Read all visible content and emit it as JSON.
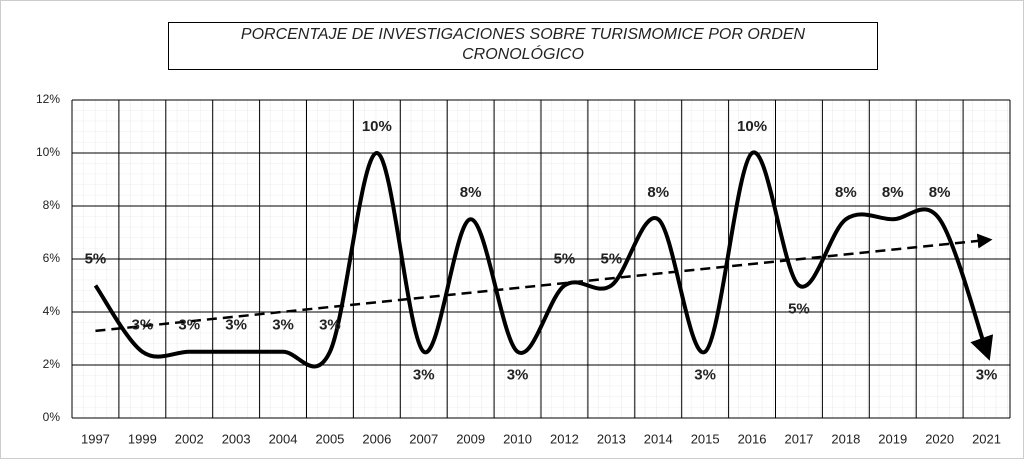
{
  "chart_data": {
    "type": "line",
    "title": "PORCENTAJE DE INVESTIGACIONES SOBRE TURISMOMICE POR ORDEN CRONOLÓGICO",
    "categories": [
      "1997",
      "1999",
      "2002",
      "2003",
      "2004",
      "2005",
      "2006",
      "2007",
      "2009",
      "2010",
      "2012",
      "2013",
      "2014",
      "2015",
      "2016",
      "2017",
      "2018",
      "2019",
      "2020",
      "2021"
    ],
    "values": [
      5,
      2.5,
      2.5,
      2.5,
      2.5,
      2.5,
      10,
      2.5,
      7.5,
      2.5,
      5,
      5,
      7.5,
      2.5,
      10,
      5,
      7.5,
      7.5,
      7.5,
      2.5
    ],
    "value_labels": [
      "5%",
      "3%",
      "3%",
      "3%",
      "3%",
      "3%",
      "10%",
      "3%",
      "8%",
      "3%",
      "5%",
      "5%",
      "8%",
      "3%",
      "10%",
      "5%",
      "8%",
      "8%",
      "8%",
      "3%"
    ],
    "color": "#000000",
    "trendline": true,
    "ylim": [
      0,
      12
    ],
    "yticks": [
      {
        "value": 0,
        "label": "0%"
      },
      {
        "value": 2,
        "label": "2%"
      },
      {
        "value": 4,
        "label": "4%"
      },
      {
        "value": 6,
        "label": "6%"
      },
      {
        "value": 8,
        "label": "8%"
      },
      {
        "value": 10,
        "label": "10%"
      },
      {
        "value": 12,
        "label": "12%"
      }
    ],
    "grid": true
  }
}
